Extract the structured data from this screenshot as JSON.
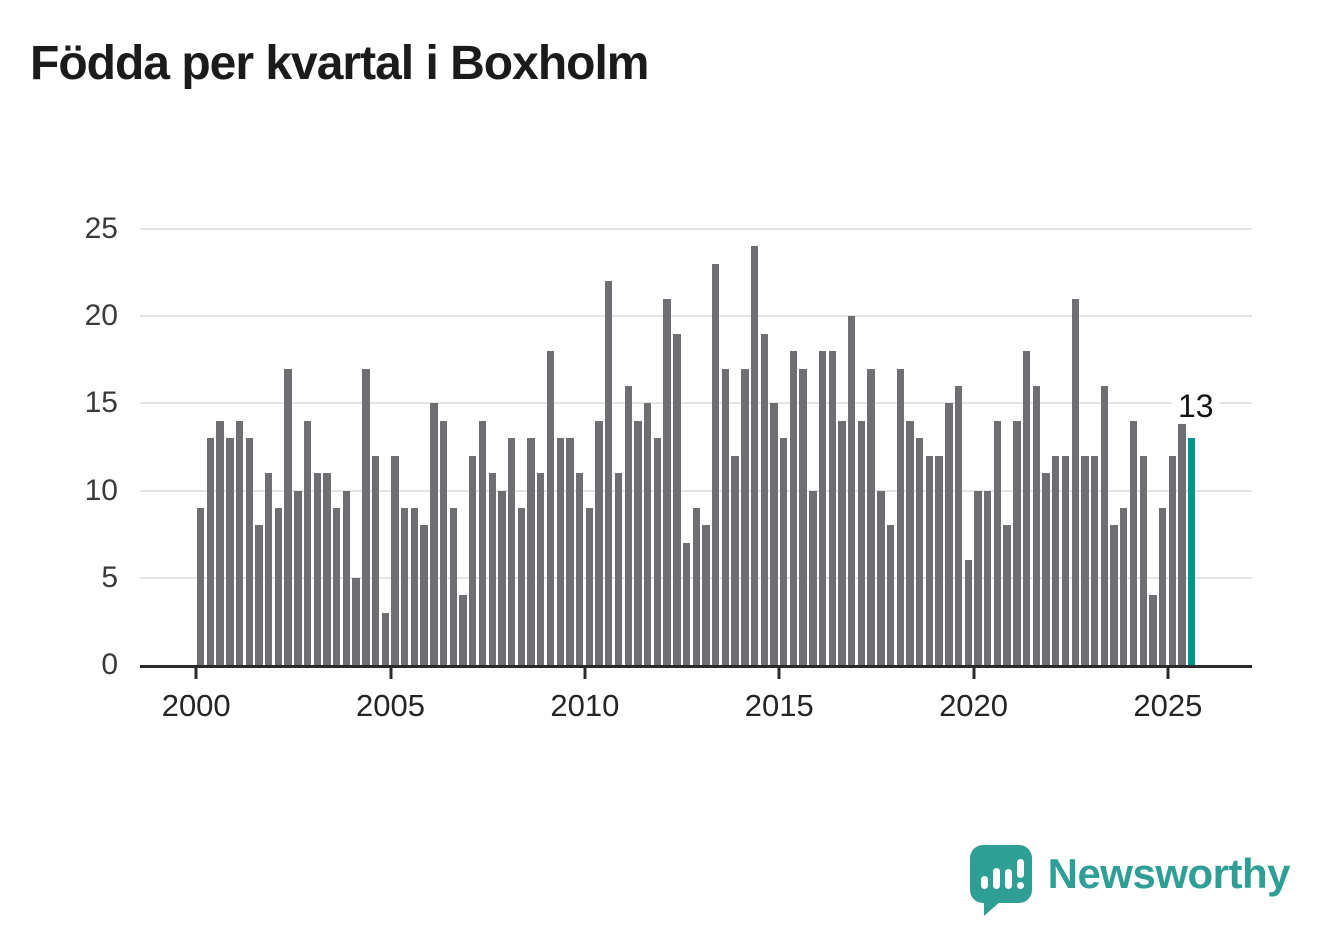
{
  "title": "Födda per kvartal i Boxholm",
  "chart_data": {
    "type": "bar",
    "title": "Födda per kvartal i Boxholm",
    "xlabel": "",
    "ylabel": "",
    "ylim": [
      0,
      25
    ],
    "y_ticks": [
      0,
      5,
      10,
      15,
      20,
      25
    ],
    "x_tick_labels": [
      "2000",
      "2005",
      "2010",
      "2015",
      "2020",
      "2025"
    ],
    "grid": "horizontal",
    "legend_position": "none",
    "period": "quarterly",
    "first_quarter": "2000-Q1",
    "last_quarter": "2025-Q3",
    "series": [
      {
        "name": "Födda per kvartal",
        "values": [
          9,
          13,
          14,
          13,
          14,
          13,
          8,
          11,
          9,
          17,
          10,
          14,
          11,
          11,
          9,
          10,
          5,
          17,
          12,
          3,
          12,
          9,
          9,
          8,
          15,
          14,
          9,
          4,
          12,
          14,
          11,
          10,
          13,
          9,
          13,
          11,
          18,
          13,
          13,
          11,
          9,
          14,
          22,
          11,
          16,
          14,
          15,
          13,
          21,
          19,
          7,
          9,
          8,
          23,
          17,
          12,
          17,
          24,
          19,
          15,
          13,
          18,
          17,
          10,
          18,
          18,
          14,
          20,
          14,
          17,
          10,
          8,
          17,
          14,
          13,
          12,
          12,
          15,
          16,
          6,
          10,
          10,
          14,
          8,
          14,
          18,
          16,
          11,
          12,
          12,
          21,
          12,
          12,
          16,
          8,
          9,
          14,
          12,
          4,
          9,
          12,
          14,
          13
        ]
      }
    ],
    "bar_color": "#6e6e73",
    "highlight_color": "#00968c",
    "highlight_index": 102,
    "annotation": {
      "text": "13",
      "value": 13,
      "quarter": "2025-Q3"
    }
  },
  "branding": {
    "name": "Newsworthy",
    "color": "#2f9e94",
    "icon": "newsworthy-speech-bubble-chart-icon"
  }
}
